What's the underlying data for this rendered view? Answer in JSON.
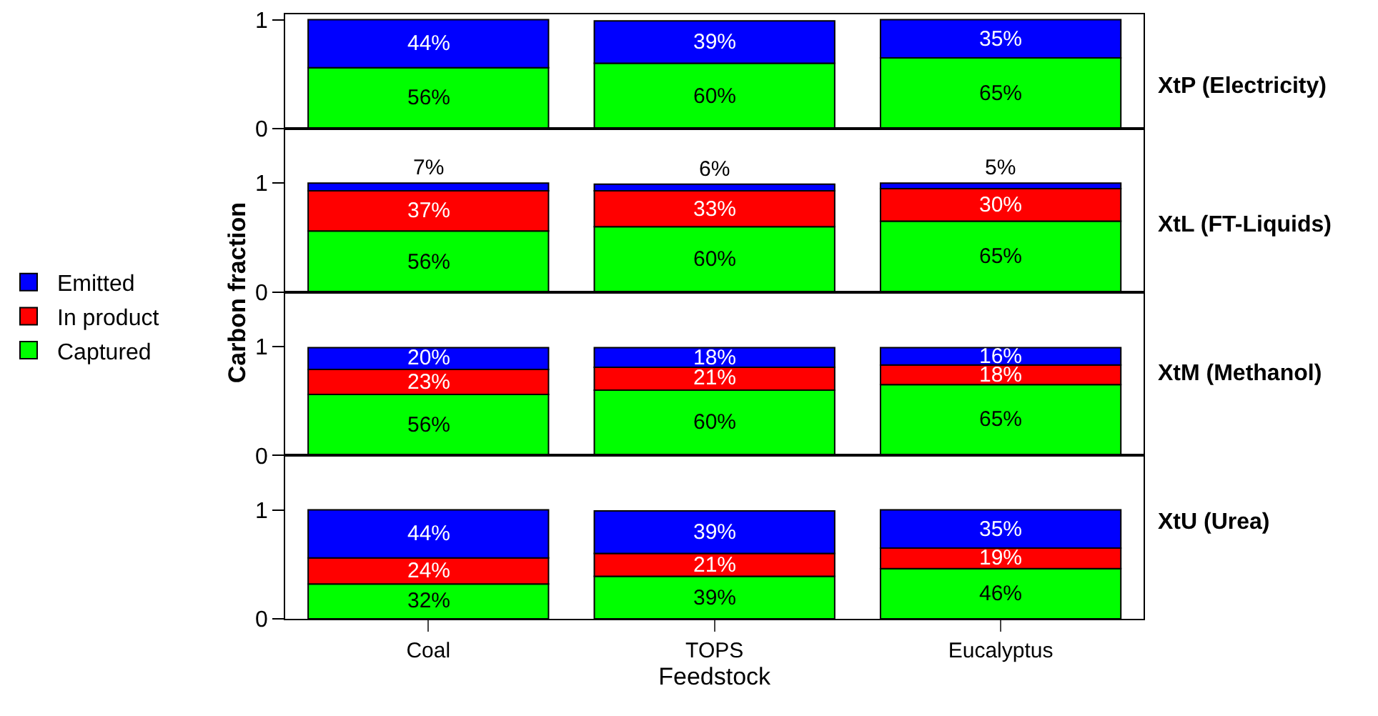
{
  "chart_data": [
    {
      "type": "bar",
      "annotations": [
        "XtP (Electricity)"
      ],
      "categories": [
        null,
        null,
        null
      ],
      "stacked": true,
      "ylim": [
        0,
        1.05
      ],
      "yticks": [
        0,
        1
      ],
      "tick_labels": "y",
      "grid": false,
      "series": [
        {
          "color": "#00ff00",
          "values": [
            0.56,
            0.6,
            0.65
          ],
          "value_labels": [
            "56%",
            "60%",
            "65%"
          ]
        },
        {
          "color": "#0000ff",
          "values": [
            0.44,
            0.39,
            0.35
          ],
          "value_labels": [
            "44%",
            "39%",
            "35%"
          ]
        }
      ]
    },
    {
      "type": "bar",
      "annotations": [
        "XtL (FT-Liquids)"
      ],
      "ylabel": "Carbon fraction",
      "categories": [
        null,
        null,
        null
      ],
      "stacked": true,
      "ylim": [
        0,
        1.5
      ],
      "yticks": [
        0,
        1
      ],
      "tick_labels": "y",
      "grid": false,
      "series": [
        {
          "color": "#00ff00",
          "values": [
            0.56,
            0.6,
            0.65
          ],
          "value_labels": [
            "56%",
            "60%",
            "65%"
          ]
        },
        {
          "color": "#ff0000",
          "values": [
            0.37,
            0.33,
            0.3
          ],
          "value_labels": [
            "37%",
            "33%",
            "30%"
          ]
        },
        {
          "color": "#0000ff",
          "values": [
            0.07,
            0.06,
            0.05
          ],
          "value_labels": [
            "7%",
            "6%",
            "5%"
          ]
        }
      ]
    },
    {
      "type": "bar",
      "annotations": [
        "XtM (Methanol)"
      ],
      "categories": [
        null,
        null,
        null
      ],
      "stacked": true,
      "ylim": [
        0,
        1.5
      ],
      "yticks": [
        0,
        1
      ],
      "tick_labels": "y",
      "grid": false,
      "series": [
        {
          "color": "#00ff00",
          "values": [
            0.56,
            0.6,
            0.65
          ],
          "value_labels": [
            "56%",
            "60%",
            "65%"
          ]
        },
        {
          "color": "#ff0000",
          "values": [
            0.23,
            0.21,
            0.18
          ],
          "value_labels": [
            "23%",
            "21%",
            "18%"
          ]
        },
        {
          "color": "#0000ff",
          "values": [
            0.2,
            0.18,
            0.16
          ],
          "value_labels": [
            "20%",
            "18%",
            "16%"
          ]
        }
      ]
    },
    {
      "type": "bar",
      "annotations": [
        "XtU (Urea)"
      ],
      "xlabel": "Feedstock",
      "categories": [
        "Coal",
        "TOPS",
        "Eucalyptus"
      ],
      "stacked": true,
      "ylim": [
        0,
        1.5
      ],
      "yticks": [
        0,
        1
      ],
      "grid": false,
      "legend": "left",
      "series": [
        {
          "name": "Captured",
          "color": "#00ff00",
          "values": [
            0.32,
            0.39,
            0.46
          ],
          "value_labels": [
            "32%",
            "39%",
            "46%"
          ]
        },
        {
          "name": "In product",
          "color": "#ff0000",
          "values": [
            0.24,
            0.21,
            0.19
          ],
          "value_labels": [
            "24%",
            "21%",
            "19%"
          ]
        },
        {
          "name": "Emitted",
          "color": "#0000ff",
          "values": [
            0.44,
            0.39,
            0.35
          ],
          "value_labels": [
            "44%",
            "39%",
            "35%"
          ]
        }
      ]
    }
  ]
}
